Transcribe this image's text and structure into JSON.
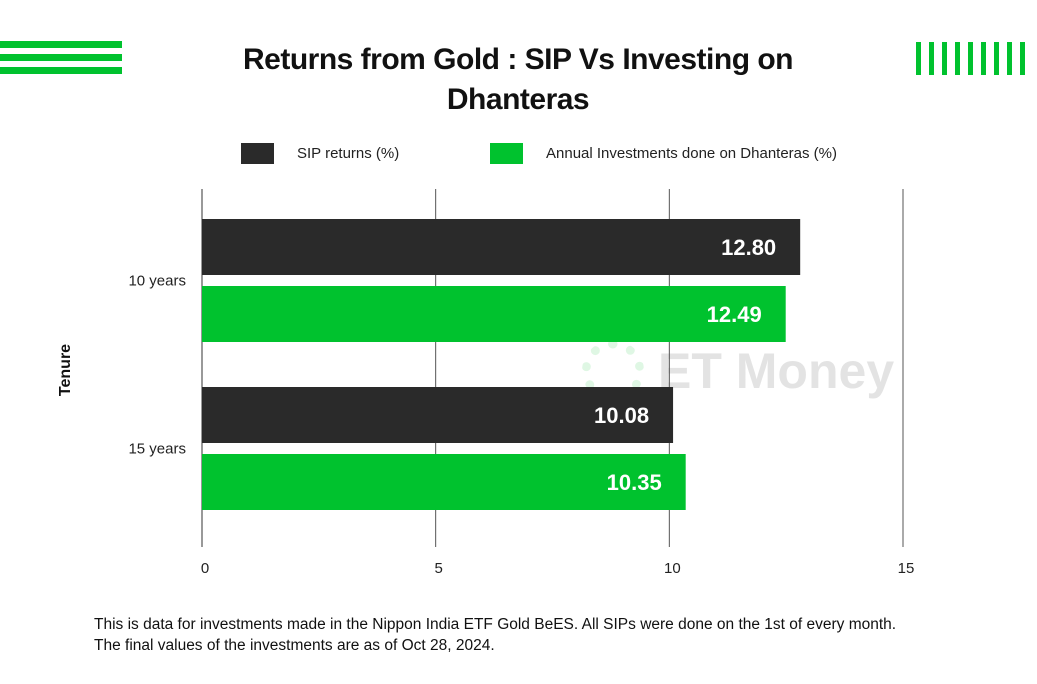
{
  "chart_data": {
    "type": "bar",
    "orientation": "horizontal",
    "title": "Returns from Gold : SIP Vs Investing on Dhanteras",
    "ylabel": "Tenure",
    "xlabel": "",
    "categories": [
      "10 years",
      "15 years"
    ],
    "series": [
      {
        "name": "SIP returns (%)",
        "values": [
          12.8,
          10.08
        ],
        "labels": [
          "12.80",
          "10.08"
        ],
        "color": "#2a2a2a"
      },
      {
        "name": "Annual Investments done on Dhanteras (%)",
        "values": [
          12.49,
          10.35
        ],
        "labels": [
          "12.49",
          "10.35"
        ],
        "color": "#00c22e"
      }
    ],
    "xlim": [
      0,
      15
    ],
    "xticks": [
      "0",
      "5",
      "10",
      "15"
    ],
    "grid": true,
    "legend_position": "top"
  },
  "watermark": {
    "brand": "ET Money"
  },
  "footnote": "This is data for investments made in the Nippon India ETF Gold BeES. All SIPs were done on the 1st of every month. The final values of the investments are as of Oct 28, 2024.",
  "colors": {
    "accent": "#00c22e",
    "dark": "#2a2a2a"
  }
}
